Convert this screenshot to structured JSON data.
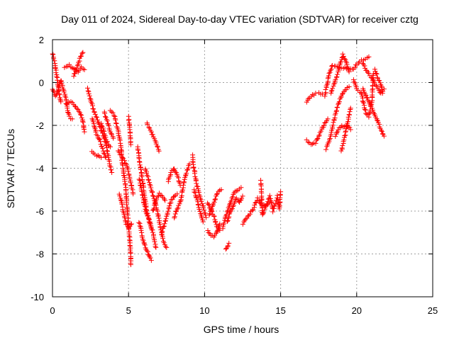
{
  "chart_data": {
    "type": "scatter",
    "title": "Day 011 of 2024, Sidereal Day-to-day VTEC variation (SDTVAR) for receiver cztg",
    "xlabel": "GPS time / hours",
    "ylabel": "SDTVAR / TECUs",
    "xlim": [
      0,
      25
    ],
    "ylim": [
      -10,
      2
    ],
    "xticks": [
      0,
      5,
      10,
      15,
      20,
      25
    ],
    "yticks": [
      -10,
      -8,
      -6,
      -4,
      -2,
      0,
      2
    ],
    "xtick_labels": [
      "0",
      "5",
      "10",
      "15",
      "20",
      "25"
    ],
    "ytick_labels": [
      "-10",
      "-8",
      "-6",
      "-4",
      "-2",
      "0",
      "2"
    ],
    "grid": true,
    "marker": "+",
    "color": "#ff0000",
    "tracks": [
      [
        [
          0.0,
          1.35
        ],
        [
          0.15,
          0.9
        ],
        [
          0.3,
          0.2
        ],
        [
          0.45,
          -0.6
        ],
        [
          0.55,
          -0.9
        ]
      ],
      [
        [
          0.0,
          -0.3
        ],
        [
          0.2,
          -0.6
        ],
        [
          0.35,
          -0.4
        ],
        [
          0.55,
          0.1
        ],
        [
          0.7,
          -0.3
        ],
        [
          0.9,
          -0.8
        ],
        [
          1.0,
          -1.3
        ],
        [
          1.1,
          -1.6
        ],
        [
          1.3,
          -1.7
        ]
      ],
      [
        [
          0.8,
          0.7
        ],
        [
          1.1,
          0.8
        ],
        [
          1.3,
          0.7
        ],
        [
          1.5,
          0.6
        ],
        [
          1.7,
          0.5
        ],
        [
          1.9,
          0.7
        ],
        [
          2.1,
          0.6
        ]
      ],
      [
        [
          1.4,
          0.3
        ],
        [
          1.6,
          0.7
        ],
        [
          1.8,
          1.1
        ],
        [
          2.0,
          1.4
        ]
      ],
      [
        [
          0.9,
          -1.0
        ],
        [
          1.2,
          -0.9
        ],
        [
          1.4,
          -1.0
        ],
        [
          1.6,
          -1.2
        ],
        [
          1.8,
          -1.4
        ],
        [
          2.0,
          -1.8
        ],
        [
          2.1,
          -2.3
        ]
      ],
      [
        [
          2.3,
          -0.3
        ],
        [
          2.5,
          -0.8
        ],
        [
          2.8,
          -1.5
        ],
        [
          3.0,
          -1.8
        ],
        [
          3.2,
          -2.2
        ],
        [
          3.5,
          -2.8
        ],
        [
          3.7,
          -3.6
        ],
        [
          3.9,
          -4.2
        ]
      ],
      [
        [
          2.6,
          -1.7
        ],
        [
          2.9,
          -2.4
        ],
        [
          3.1,
          -2.7
        ],
        [
          3.3,
          -3.1
        ],
        [
          3.5,
          -3.5
        ]
      ],
      [
        [
          2.6,
          -3.2
        ],
        [
          2.9,
          -3.4
        ],
        [
          3.2,
          -3.5
        ]
      ],
      [
        [
          3.2,
          -1.9
        ],
        [
          3.4,
          -2.3
        ],
        [
          3.6,
          -2.8
        ],
        [
          3.8,
          -3.0
        ]
      ],
      [
        [
          3.4,
          -1.4
        ],
        [
          3.6,
          -1.8
        ],
        [
          3.8,
          -2.3
        ],
        [
          4.0,
          -2.6
        ]
      ],
      [
        [
          3.8,
          -1.3
        ],
        [
          4.1,
          -1.6
        ],
        [
          4.3,
          -2.2
        ],
        [
          4.5,
          -3.0
        ],
        [
          4.6,
          -3.8
        ],
        [
          4.8,
          -4.8
        ],
        [
          4.9,
          -5.8
        ],
        [
          5.0,
          -6.7
        ],
        [
          5.1,
          -7.5
        ],
        [
          5.15,
          -8.5
        ]
      ],
      [
        [
          4.3,
          -3.2
        ],
        [
          4.6,
          -3.5
        ],
        [
          4.9,
          -3.9
        ],
        [
          5.1,
          -4.5
        ],
        [
          5.3,
          -5.2
        ]
      ],
      [
        [
          4.4,
          -5.2
        ],
        [
          4.6,
          -5.8
        ],
        [
          4.8,
          -6.5
        ],
        [
          5.0,
          -6.8
        ],
        [
          5.2,
          -6.6
        ]
      ],
      [
        [
          5.0,
          -1.6
        ],
        [
          5.1,
          -2.2
        ],
        [
          5.15,
          -2.9
        ]
      ],
      [
        [
          5.6,
          -3.0
        ],
        [
          5.8,
          -4.0
        ],
        [
          6.0,
          -5.0
        ],
        [
          6.2,
          -6.0
        ],
        [
          6.4,
          -6.5
        ],
        [
          6.6,
          -7.0
        ],
        [
          6.8,
          -7.7
        ]
      ],
      [
        [
          5.7,
          -4.5
        ],
        [
          5.9,
          -5.2
        ],
        [
          6.1,
          -5.9
        ],
        [
          6.3,
          -6.3
        ],
        [
          6.5,
          -6.8
        ]
      ],
      [
        [
          5.7,
          -6.5
        ],
        [
          5.9,
          -7.2
        ],
        [
          6.1,
          -7.7
        ],
        [
          6.3,
          -8.0
        ],
        [
          6.5,
          -8.3
        ]
      ],
      [
        [
          6.2,
          -1.9
        ],
        [
          6.5,
          -2.3
        ],
        [
          6.8,
          -2.8
        ],
        [
          7.0,
          -3.2
        ]
      ],
      [
        [
          6.1,
          -4.0
        ],
        [
          6.3,
          -4.5
        ],
        [
          6.5,
          -5.0
        ],
        [
          6.7,
          -5.5
        ],
        [
          6.9,
          -6.0
        ],
        [
          7.1,
          -6.8
        ],
        [
          7.3,
          -7.4
        ],
        [
          7.5,
          -7.7
        ]
      ],
      [
        [
          6.6,
          -6.0
        ],
        [
          6.8,
          -5.5
        ],
        [
          7.0,
          -5.2
        ],
        [
          7.2,
          -5.3
        ],
        [
          7.4,
          -5.5
        ]
      ],
      [
        [
          7.2,
          -7.0
        ],
        [
          7.4,
          -6.5
        ],
        [
          7.6,
          -6.0
        ],
        [
          7.8,
          -5.5
        ],
        [
          8.0,
          -5.3
        ],
        [
          8.2,
          -5.2
        ]
      ],
      [
        [
          7.6,
          -4.6
        ],
        [
          7.8,
          -4.2
        ],
        [
          8.0,
          -4.0
        ],
        [
          8.2,
          -4.3
        ],
        [
          8.4,
          -4.8
        ]
      ],
      [
        [
          8.0,
          -6.3
        ],
        [
          8.2,
          -5.9
        ],
        [
          8.4,
          -5.6
        ],
        [
          8.6,
          -4.8
        ],
        [
          8.8,
          -4.2
        ],
        [
          9.0,
          -3.8
        ]
      ],
      [
        [
          9.2,
          -3.4
        ],
        [
          9.3,
          -4.0
        ],
        [
          9.5,
          -4.8
        ],
        [
          9.7,
          -5.3
        ],
        [
          9.9,
          -5.8
        ],
        [
          10.1,
          -6.3
        ]
      ],
      [
        [
          9.3,
          -5.0
        ],
        [
          9.5,
          -5.5
        ],
        [
          9.7,
          -6.0
        ],
        [
          9.9,
          -6.5
        ]
      ],
      [
        [
          10.2,
          -5.6
        ],
        [
          10.4,
          -5.9
        ],
        [
          10.6,
          -6.2
        ],
        [
          10.8,
          -6.7
        ],
        [
          11.0,
          -6.9
        ]
      ],
      [
        [
          10.2,
          -6.9
        ],
        [
          10.4,
          -7.1
        ],
        [
          10.6,
          -7.2
        ],
        [
          10.8,
          -7.0
        ],
        [
          11.0,
          -6.6
        ]
      ],
      [
        [
          10.3,
          -6.2
        ],
        [
          10.5,
          -5.8
        ],
        [
          10.7,
          -5.4
        ],
        [
          10.9,
          -5.1
        ],
        [
          11.1,
          -5.0
        ]
      ],
      [
        [
          11.2,
          -6.8
        ],
        [
          11.4,
          -6.2
        ],
        [
          11.6,
          -5.8
        ],
        [
          11.8,
          -5.4
        ],
        [
          12.0,
          -5.1
        ],
        [
          12.2,
          -5.0
        ],
        [
          12.4,
          -4.9
        ]
      ],
      [
        [
          11.5,
          -6.5
        ],
        [
          11.7,
          -6.0
        ],
        [
          11.9,
          -5.7
        ],
        [
          12.1,
          -5.4
        ],
        [
          12.3,
          -5.6
        ],
        [
          12.5,
          -5.3
        ]
      ],
      [
        [
          11.4,
          -7.8
        ],
        [
          11.6,
          -7.5
        ]
      ],
      [
        [
          12.5,
          -6.6
        ],
        [
          13.2,
          -5.9
        ],
        [
          13.5,
          -5.4
        ],
        [
          13.8,
          -5.8
        ],
        [
          14.3,
          -5.6
        ]
      ],
      [
        [
          13.7,
          -4.6
        ],
        [
          13.8,
          -6.2
        ],
        [
          14.3,
          -5.3
        ],
        [
          14.5,
          -6.0
        ],
        [
          14.8,
          -5.3
        ],
        [
          14.9,
          -5.9
        ],
        [
          15.0,
          -5.1
        ]
      ],
      [
        [
          16.7,
          -0.9
        ],
        [
          16.9,
          -0.7
        ],
        [
          17.1,
          -0.6
        ],
        [
          17.3,
          -0.5
        ]
      ],
      [
        [
          16.7,
          -2.7
        ],
        [
          16.9,
          -2.8
        ],
        [
          17.1,
          -2.9
        ],
        [
          17.3,
          -2.8
        ],
        [
          17.5,
          -2.5
        ],
        [
          17.7,
          -2.2
        ],
        [
          17.9,
          -1.9
        ],
        [
          18.1,
          -1.7
        ]
      ],
      [
        [
          18.0,
          -3.1
        ],
        [
          18.3,
          -2.5
        ],
        [
          18.5,
          -1.8
        ],
        [
          18.7,
          -1.2
        ],
        [
          18.9,
          -0.8
        ],
        [
          19.1,
          -0.5
        ],
        [
          19.3,
          -0.3
        ],
        [
          19.5,
          -0.2
        ]
      ],
      [
        [
          18.3,
          -0.5
        ],
        [
          18.5,
          -0.1
        ],
        [
          18.7,
          0.3
        ],
        [
          18.9,
          0.8
        ],
        [
          19.1,
          1.3
        ],
        [
          19.3,
          1.0
        ],
        [
          19.5,
          0.5
        ]
      ],
      [
        [
          18.6,
          -2.5
        ],
        [
          18.8,
          -2.2
        ],
        [
          19.0,
          -2.0
        ],
        [
          19.2,
          -2.1
        ],
        [
          19.4,
          -2.0
        ],
        [
          19.6,
          -2.2
        ]
      ],
      [
        [
          19.0,
          -3.2
        ],
        [
          19.2,
          -2.6
        ],
        [
          19.4,
          -1.9
        ],
        [
          19.6,
          -1.2
        ]
      ],
      [
        [
          20.4,
          -0.3
        ],
        [
          20.6,
          -0.6
        ],
        [
          20.8,
          -0.9
        ],
        [
          21.0,
          -1.2
        ],
        [
          21.2,
          -1.5
        ],
        [
          21.4,
          -1.8
        ],
        [
          21.6,
          -2.2
        ],
        [
          21.8,
          -2.5
        ]
      ],
      [
        [
          20.4,
          0.9
        ],
        [
          20.6,
          0.6
        ],
        [
          20.8,
          0.4
        ],
        [
          21.0,
          0.2
        ],
        [
          21.2,
          -0.1
        ],
        [
          21.4,
          -0.3
        ],
        [
          21.6,
          -0.5
        ],
        [
          21.8,
          -0.3
        ]
      ],
      [
        [
          21.2,
          0.6
        ],
        [
          21.4,
          0.2
        ],
        [
          21.6,
          -0.1
        ],
        [
          21.7,
          -0.5
        ]
      ],
      [
        [
          19.8,
          0.1
        ],
        [
          20.0,
          -0.3
        ],
        [
          20.3,
          -0.5
        ],
        [
          20.6,
          -1.4
        ],
        [
          20.8,
          -1.6
        ],
        [
          21.0,
          -0.9
        ],
        [
          21.1,
          0.4
        ]
      ],
      [
        [
          17.5,
          -0.5
        ],
        [
          17.9,
          -0.6
        ],
        [
          18.2,
          0.4
        ],
        [
          18.4,
          0.8
        ],
        [
          19.7,
          0.6
        ],
        [
          20.2,
          1.0
        ],
        [
          20.8,
          1.2
        ]
      ]
    ]
  }
}
